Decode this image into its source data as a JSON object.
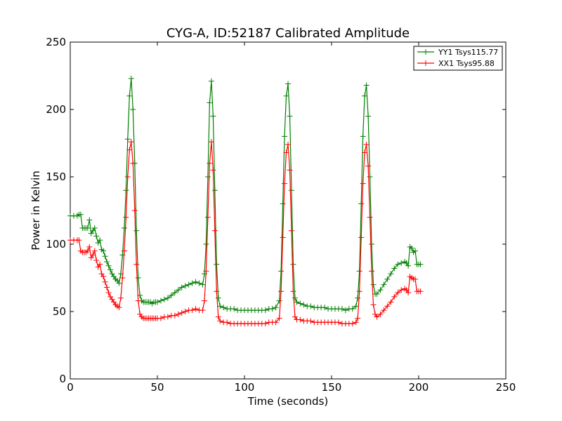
{
  "chart_data": {
    "type": "line",
    "title": "CYG-A, ID:52187 Calibrated Amplitude",
    "xlabel": "Time (seconds)",
    "ylabel": "Power in Kelvin",
    "xlim": [
      0,
      250
    ],
    "ylim": [
      0,
      250
    ],
    "xticks": [
      0,
      50,
      100,
      150,
      200,
      250
    ],
    "yticks": [
      0,
      50,
      100,
      150,
      200,
      250
    ],
    "grid": false,
    "legend_position": "top-right",
    "series": [
      {
        "name": "YY1 Tsys115.77",
        "color": "#008000",
        "marker": "plus",
        "points": [
          [
            0,
            121
          ],
          [
            2,
            121
          ],
          [
            4,
            121
          ],
          [
            5,
            122
          ],
          [
            6,
            122
          ],
          [
            7,
            112
          ],
          [
            8,
            112
          ],
          [
            9,
            112
          ],
          [
            10,
            112
          ],
          [
            11,
            118
          ],
          [
            12,
            108
          ],
          [
            13,
            110
          ],
          [
            14,
            112
          ],
          [
            15,
            106
          ],
          [
            16,
            101
          ],
          [
            17,
            103
          ],
          [
            18,
            96
          ],
          [
            19,
            95
          ],
          [
            20,
            91
          ],
          [
            21,
            87
          ],
          [
            22,
            84
          ],
          [
            23,
            81
          ],
          [
            24,
            78
          ],
          [
            25,
            76
          ],
          [
            26,
            74
          ],
          [
            27,
            73
          ],
          [
            28,
            71
          ],
          [
            29,
            78
          ],
          [
            30,
            92
          ],
          [
            31,
            112
          ],
          [
            32,
            140
          ],
          [
            33,
            178
          ],
          [
            34,
            210
          ],
          [
            35,
            223
          ],
          [
            36,
            200
          ],
          [
            37,
            160
          ],
          [
            38,
            110
          ],
          [
            39,
            75
          ],
          [
            40,
            62
          ],
          [
            41,
            58
          ],
          [
            42,
            57
          ],
          [
            43,
            57
          ],
          [
            44,
            57
          ],
          [
            45,
            57
          ],
          [
            46,
            57
          ],
          [
            47,
            56
          ],
          [
            48,
            57
          ],
          [
            49,
            57
          ],
          [
            50,
            57
          ],
          [
            52,
            58
          ],
          [
            54,
            59
          ],
          [
            56,
            60
          ],
          [
            58,
            62
          ],
          [
            60,
            64
          ],
          [
            62,
            66
          ],
          [
            64,
            68
          ],
          [
            66,
            69
          ],
          [
            68,
            70
          ],
          [
            70,
            71
          ],
          [
            72,
            72
          ],
          [
            74,
            71
          ],
          [
            76,
            70
          ],
          [
            77,
            78
          ],
          [
            78,
            100
          ],
          [
            79,
            150
          ],
          [
            80,
            205
          ],
          [
            81,
            221
          ],
          [
            82,
            195
          ],
          [
            83,
            140
          ],
          [
            84,
            85
          ],
          [
            85,
            60
          ],
          [
            86,
            54
          ],
          [
            88,
            53
          ],
          [
            90,
            52
          ],
          [
            92,
            52
          ],
          [
            94,
            52
          ],
          [
            96,
            51
          ],
          [
            98,
            51
          ],
          [
            100,
            51
          ],
          [
            102,
            51
          ],
          [
            104,
            51
          ],
          [
            106,
            51
          ],
          [
            108,
            51
          ],
          [
            110,
            51
          ],
          [
            112,
            51
          ],
          [
            114,
            52
          ],
          [
            116,
            52
          ],
          [
            118,
            53
          ],
          [
            120,
            58
          ],
          [
            121,
            80
          ],
          [
            122,
            130
          ],
          [
            123,
            180
          ],
          [
            124,
            210
          ],
          [
            125,
            219
          ],
          [
            126,
            195
          ],
          [
            127,
            140
          ],
          [
            128,
            85
          ],
          [
            129,
            60
          ],
          [
            130,
            57
          ],
          [
            132,
            56
          ],
          [
            134,
            55
          ],
          [
            136,
            54
          ],
          [
            138,
            54
          ],
          [
            140,
            53
          ],
          [
            142,
            53
          ],
          [
            144,
            53
          ],
          [
            146,
            53
          ],
          [
            148,
            52
          ],
          [
            150,
            52
          ],
          [
            152,
            52
          ],
          [
            154,
            52
          ],
          [
            156,
            52
          ],
          [
            158,
            51
          ],
          [
            160,
            52
          ],
          [
            162,
            52
          ],
          [
            164,
            54
          ],
          [
            165,
            60
          ],
          [
            166,
            80
          ],
          [
            167,
            130
          ],
          [
            168,
            180
          ],
          [
            169,
            210
          ],
          [
            170,
            218
          ],
          [
            171,
            195
          ],
          [
            172,
            150
          ],
          [
            173,
            100
          ],
          [
            174,
            70
          ],
          [
            175,
            63
          ],
          [
            176,
            63
          ],
          [
            178,
            66
          ],
          [
            180,
            70
          ],
          [
            182,
            74
          ],
          [
            184,
            78
          ],
          [
            186,
            82
          ],
          [
            188,
            85
          ],
          [
            190,
            86
          ],
          [
            192,
            87
          ],
          [
            193,
            86
          ],
          [
            194,
            84
          ],
          [
            195,
            98
          ],
          [
            196,
            97
          ],
          [
            197,
            94
          ],
          [
            198,
            95
          ],
          [
            199,
            85
          ],
          [
            200,
            85
          ],
          [
            201,
            85
          ]
        ]
      },
      {
        "name": "XX1 Tsys95.88",
        "color": "#ff0000",
        "marker": "plus",
        "points": [
          [
            0,
            103
          ],
          [
            2,
            103
          ],
          [
            4,
            103
          ],
          [
            5,
            103
          ],
          [
            6,
            95
          ],
          [
            7,
            94
          ],
          [
            8,
            94
          ],
          [
            9,
            94
          ],
          [
            10,
            95
          ],
          [
            11,
            98
          ],
          [
            12,
            90
          ],
          [
            13,
            92
          ],
          [
            14,
            95
          ],
          [
            15,
            88
          ],
          [
            16,
            83
          ],
          [
            17,
            85
          ],
          [
            18,
            78
          ],
          [
            19,
            76
          ],
          [
            20,
            72
          ],
          [
            21,
            68
          ],
          [
            22,
            64
          ],
          [
            23,
            61
          ],
          [
            24,
            59
          ],
          [
            25,
            57
          ],
          [
            26,
            55
          ],
          [
            27,
            54
          ],
          [
            28,
            53
          ],
          [
            29,
            60
          ],
          [
            30,
            75
          ],
          [
            31,
            95
          ],
          [
            32,
            120
          ],
          [
            33,
            150
          ],
          [
            34,
            170
          ],
          [
            35,
            176
          ],
          [
            36,
            160
          ],
          [
            37,
            125
          ],
          [
            38,
            85
          ],
          [
            39,
            58
          ],
          [
            40,
            48
          ],
          [
            41,
            46
          ],
          [
            42,
            45
          ],
          [
            43,
            45
          ],
          [
            44,
            45
          ],
          [
            45,
            45
          ],
          [
            46,
            45
          ],
          [
            47,
            45
          ],
          [
            48,
            45
          ],
          [
            49,
            45
          ],
          [
            50,
            45
          ],
          [
            52,
            45
          ],
          [
            54,
            46
          ],
          [
            56,
            46
          ],
          [
            58,
            47
          ],
          [
            60,
            47
          ],
          [
            62,
            48
          ],
          [
            64,
            49
          ],
          [
            66,
            50
          ],
          [
            68,
            51
          ],
          [
            70,
            51
          ],
          [
            72,
            52
          ],
          [
            74,
            51
          ],
          [
            76,
            51
          ],
          [
            77,
            58
          ],
          [
            78,
            80
          ],
          [
            79,
            120
          ],
          [
            80,
            160
          ],
          [
            81,
            176
          ],
          [
            82,
            155
          ],
          [
            83,
            110
          ],
          [
            84,
            65
          ],
          [
            85,
            46
          ],
          [
            86,
            43
          ],
          [
            88,
            42
          ],
          [
            90,
            42
          ],
          [
            92,
            41
          ],
          [
            94,
            41
          ],
          [
            96,
            41
          ],
          [
            98,
            41
          ],
          [
            100,
            41
          ],
          [
            102,
            41
          ],
          [
            104,
            41
          ],
          [
            106,
            41
          ],
          [
            108,
            41
          ],
          [
            110,
            41
          ],
          [
            112,
            41
          ],
          [
            114,
            42
          ],
          [
            116,
            42
          ],
          [
            118,
            42
          ],
          [
            120,
            45
          ],
          [
            121,
            65
          ],
          [
            122,
            105
          ],
          [
            123,
            145
          ],
          [
            124,
            168
          ],
          [
            125,
            174
          ],
          [
            126,
            155
          ],
          [
            127,
            110
          ],
          [
            128,
            65
          ],
          [
            129,
            46
          ],
          [
            130,
            44
          ],
          [
            132,
            44
          ],
          [
            134,
            43
          ],
          [
            136,
            43
          ],
          [
            138,
            43
          ],
          [
            140,
            42
          ],
          [
            142,
            42
          ],
          [
            144,
            42
          ],
          [
            146,
            42
          ],
          [
            148,
            42
          ],
          [
            150,
            42
          ],
          [
            152,
            42
          ],
          [
            154,
            42
          ],
          [
            156,
            41
          ],
          [
            158,
            41
          ],
          [
            160,
            41
          ],
          [
            162,
            41
          ],
          [
            164,
            42
          ],
          [
            165,
            45
          ],
          [
            166,
            65
          ],
          [
            167,
            105
          ],
          [
            168,
            145
          ],
          [
            169,
            168
          ],
          [
            170,
            174
          ],
          [
            171,
            158
          ],
          [
            172,
            120
          ],
          [
            173,
            80
          ],
          [
            174,
            55
          ],
          [
            175,
            48
          ],
          [
            176,
            46
          ],
          [
            178,
            48
          ],
          [
            180,
            51
          ],
          [
            182,
            54
          ],
          [
            184,
            57
          ],
          [
            186,
            61
          ],
          [
            188,
            64
          ],
          [
            190,
            66
          ],
          [
            192,
            67
          ],
          [
            193,
            66
          ],
          [
            194,
            64
          ],
          [
            195,
            76
          ],
          [
            196,
            75
          ],
          [
            197,
            74
          ],
          [
            198,
            74
          ],
          [
            199,
            65
          ],
          [
            200,
            65
          ],
          [
            201,
            65
          ]
        ]
      }
    ]
  }
}
